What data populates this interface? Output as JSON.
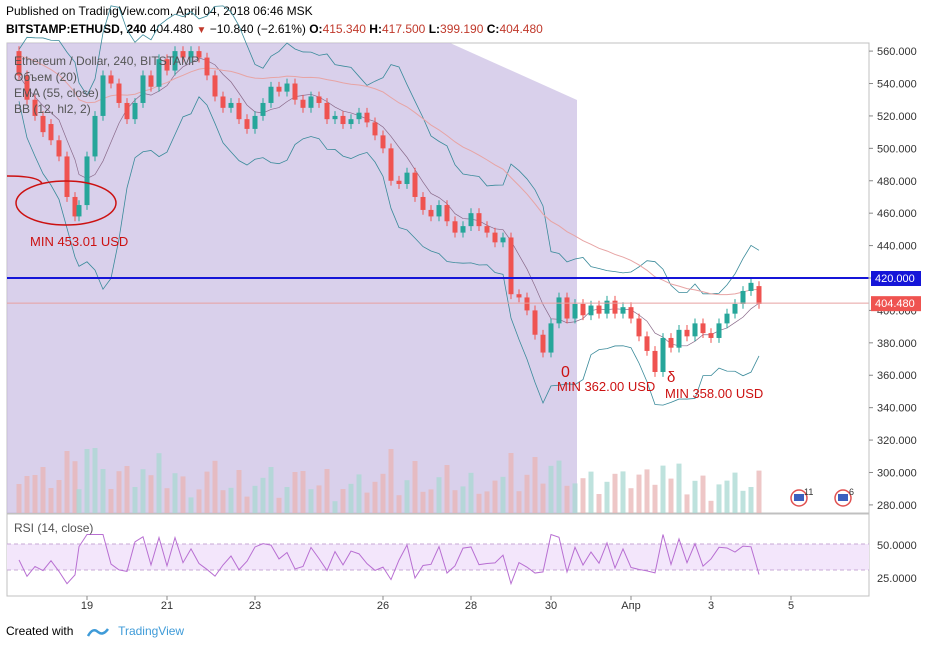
{
  "header": {
    "published": "Published on TradingView.com, April 04, 2018 06:46 MSK",
    "symbol": "BITSTAMP:ETHUSD, 240",
    "last": "404.480",
    "change": "−10.840 (−2.61%)",
    "o_label": "O:",
    "o_value": "415.340",
    "h_label": "H:",
    "h_value": "417.500",
    "l_label": "L:",
    "l_value": "399.190",
    "c_label": "C:",
    "c_value": "404.480"
  },
  "legend": {
    "title": "Ethereum / Dollar, 240, BITSTAMP",
    "volume": "Объем (20)",
    "ema": "EMA (55, close)",
    "bb": "BB (12, hl2, 2)"
  },
  "rsi_label": "RSI (14, close)",
  "footer": {
    "created_with": "Created with",
    "brand": "TradingView"
  },
  "colors": {
    "up": "#26a69a",
    "down": "#ef5350",
    "level": "#1515d8",
    "annotation": "#cc1111",
    "bb_line": "#3a8a9a",
    "ema_line": "#e7a4a4",
    "rsi_line": "#b86fd2",
    "shade": "#c9bce2",
    "bb_fill": "#e8f6f7",
    "rsi_band": "#f3e6fb"
  },
  "chart_data": {
    "type": "candlestick",
    "title": "Ethereum / Dollar, 240, BITSTAMP",
    "y_range": [
      275,
      565
    ],
    "y_ticks": [
      "560.000",
      "540.000",
      "520.000",
      "500.000",
      "480.000",
      "460.000",
      "440.000",
      "420.000",
      "400.000",
      "380.000",
      "360.000",
      "340.000",
      "320.000",
      "300.000",
      "280.000"
    ],
    "y_tick_values": [
      560,
      540,
      520,
      500,
      480,
      460,
      440,
      420,
      400,
      380,
      360,
      340,
      320,
      300,
      280
    ],
    "x_ticks": [
      "19",
      "21",
      "23",
      "26",
      "28",
      "30",
      "Апр",
      "3",
      "5"
    ],
    "x_tick_index": [
      18,
      38,
      60,
      92,
      114,
      134,
      154,
      174,
      194
    ],
    "price_labels": {
      "level": "420.000",
      "last": "404.480"
    },
    "last_price": 404.48,
    "level_price": 420.0,
    "annotations": [
      {
        "text": "MIN 453.01 USD",
        "price": 453.01
      },
      {
        "text": "MIN 362.00 USD",
        "price": 362.0
      },
      {
        "text": "MIN 358.00 USD",
        "price": 358.0
      }
    ],
    "candles_approx": [
      {
        "t": 1,
        "o": 560,
        "c": 545
      },
      {
        "t": 3,
        "o": 545,
        "c": 530
      },
      {
        "t": 5,
        "o": 530,
        "c": 520
      },
      {
        "t": 7,
        "o": 520,
        "c": 510
      },
      {
        "t": 9,
        "o": 515,
        "c": 505
      },
      {
        "t": 11,
        "o": 505,
        "c": 495
      },
      {
        "t": 13,
        "o": 495,
        "c": 470
      },
      {
        "t": 15,
        "o": 470,
        "c": 458
      },
      {
        "t": 16,
        "o": 458,
        "c": 465
      },
      {
        "t": 18,
        "o": 465,
        "c": 495
      },
      {
        "t": 20,
        "o": 495,
        "c": 520
      },
      {
        "t": 22,
        "o": 520,
        "c": 545
      },
      {
        "t": 24,
        "o": 545,
        "c": 540
      },
      {
        "t": 26,
        "o": 540,
        "c": 528
      },
      {
        "t": 28,
        "o": 528,
        "c": 518
      },
      {
        "t": 30,
        "o": 518,
        "c": 528
      },
      {
        "t": 32,
        "o": 528,
        "c": 545
      },
      {
        "t": 34,
        "o": 545,
        "c": 538
      },
      {
        "t": 36,
        "o": 538,
        "c": 555
      },
      {
        "t": 38,
        "o": 555,
        "c": 548
      },
      {
        "t": 40,
        "o": 548,
        "c": 560
      },
      {
        "t": 42,
        "o": 560,
        "c": 556
      },
      {
        "t": 44,
        "o": 556,
        "c": 560
      },
      {
        "t": 46,
        "o": 560,
        "c": 556
      },
      {
        "t": 48,
        "o": 556,
        "c": 545
      },
      {
        "t": 50,
        "o": 545,
        "c": 532
      },
      {
        "t": 52,
        "o": 532,
        "c": 525
      },
      {
        "t": 54,
        "o": 525,
        "c": 528
      },
      {
        "t": 56,
        "o": 528,
        "c": 518
      },
      {
        "t": 58,
        "o": 518,
        "c": 512
      },
      {
        "t": 60,
        "o": 512,
        "c": 520
      },
      {
        "t": 62,
        "o": 520,
        "c": 528
      },
      {
        "t": 64,
        "o": 528,
        "c": 538
      },
      {
        "t": 66,
        "o": 538,
        "c": 535
      },
      {
        "t": 68,
        "o": 535,
        "c": 540
      },
      {
        "t": 70,
        "o": 540,
        "c": 530
      },
      {
        "t": 72,
        "o": 530,
        "c": 525
      },
      {
        "t": 74,
        "o": 525,
        "c": 532
      },
      {
        "t": 76,
        "o": 532,
        "c": 528
      },
      {
        "t": 78,
        "o": 528,
        "c": 518
      },
      {
        "t": 80,
        "o": 518,
        "c": 520
      },
      {
        "t": 82,
        "o": 520,
        "c": 515
      },
      {
        "t": 84,
        "o": 515,
        "c": 518
      },
      {
        "t": 86,
        "o": 518,
        "c": 522
      },
      {
        "t": 88,
        "o": 522,
        "c": 516
      },
      {
        "t": 90,
        "o": 516,
        "c": 508
      },
      {
        "t": 92,
        "o": 508,
        "c": 500
      },
      {
        "t": 94,
        "o": 500,
        "c": 480
      },
      {
        "t": 96,
        "o": 480,
        "c": 478
      },
      {
        "t": 98,
        "o": 478,
        "c": 485
      },
      {
        "t": 100,
        "o": 485,
        "c": 470
      },
      {
        "t": 102,
        "o": 470,
        "c": 462
      },
      {
        "t": 104,
        "o": 462,
        "c": 458
      },
      {
        "t": 106,
        "o": 458,
        "c": 465
      },
      {
        "t": 108,
        "o": 465,
        "c": 455
      },
      {
        "t": 110,
        "o": 455,
        "c": 448
      },
      {
        "t": 112,
        "o": 448,
        "c": 452
      },
      {
        "t": 114,
        "o": 452,
        "c": 460
      },
      {
        "t": 116,
        "o": 460,
        "c": 452
      },
      {
        "t": 118,
        "o": 452,
        "c": 448
      },
      {
        "t": 120,
        "o": 448,
        "c": 442
      },
      {
        "t": 122,
        "o": 442,
        "c": 445
      },
      {
        "t": 124,
        "o": 445,
        "c": 410
      },
      {
        "t": 126,
        "o": 410,
        "c": 408
      },
      {
        "t": 128,
        "o": 408,
        "c": 400
      },
      {
        "t": 130,
        "o": 400,
        "c": 385
      },
      {
        "t": 132,
        "o": 385,
        "c": 374
      },
      {
        "t": 134,
        "o": 374,
        "c": 392
      },
      {
        "t": 136,
        "o": 392,
        "c": 408
      },
      {
        "t": 138,
        "o": 408,
        "c": 395
      },
      {
        "t": 140,
        "o": 395,
        "c": 404
      },
      {
        "t": 142,
        "o": 404,
        "c": 397
      },
      {
        "t": 144,
        "o": 397,
        "c": 403
      },
      {
        "t": 146,
        "o": 403,
        "c": 398
      },
      {
        "t": 148,
        "o": 398,
        "c": 406
      },
      {
        "t": 150,
        "o": 406,
        "c": 398
      },
      {
        "t": 152,
        "o": 398,
        "c": 402
      },
      {
        "t": 154,
        "o": 402,
        "c": 395
      },
      {
        "t": 156,
        "o": 395,
        "c": 384
      },
      {
        "t": 158,
        "o": 384,
        "c": 375
      },
      {
        "t": 160,
        "o": 375,
        "c": 362
      },
      {
        "t": 162,
        "o": 362,
        "c": 383
      },
      {
        "t": 164,
        "o": 383,
        "c": 377
      },
      {
        "t": 166,
        "o": 377,
        "c": 388
      },
      {
        "t": 168,
        "o": 388,
        "c": 384
      },
      {
        "t": 170,
        "o": 384,
        "c": 392
      },
      {
        "t": 172,
        "o": 392,
        "c": 386
      },
      {
        "t": 174,
        "o": 386,
        "c": 383
      },
      {
        "t": 176,
        "o": 383,
        "c": 392
      },
      {
        "t": 178,
        "o": 392,
        "c": 398
      },
      {
        "t": 180,
        "o": 398,
        "c": 404
      },
      {
        "t": 182,
        "o": 404,
        "c": 412
      },
      {
        "t": 184,
        "o": 412,
        "c": 417
      },
      {
        "t": 186,
        "o": 415,
        "c": 404
      }
    ]
  }
}
